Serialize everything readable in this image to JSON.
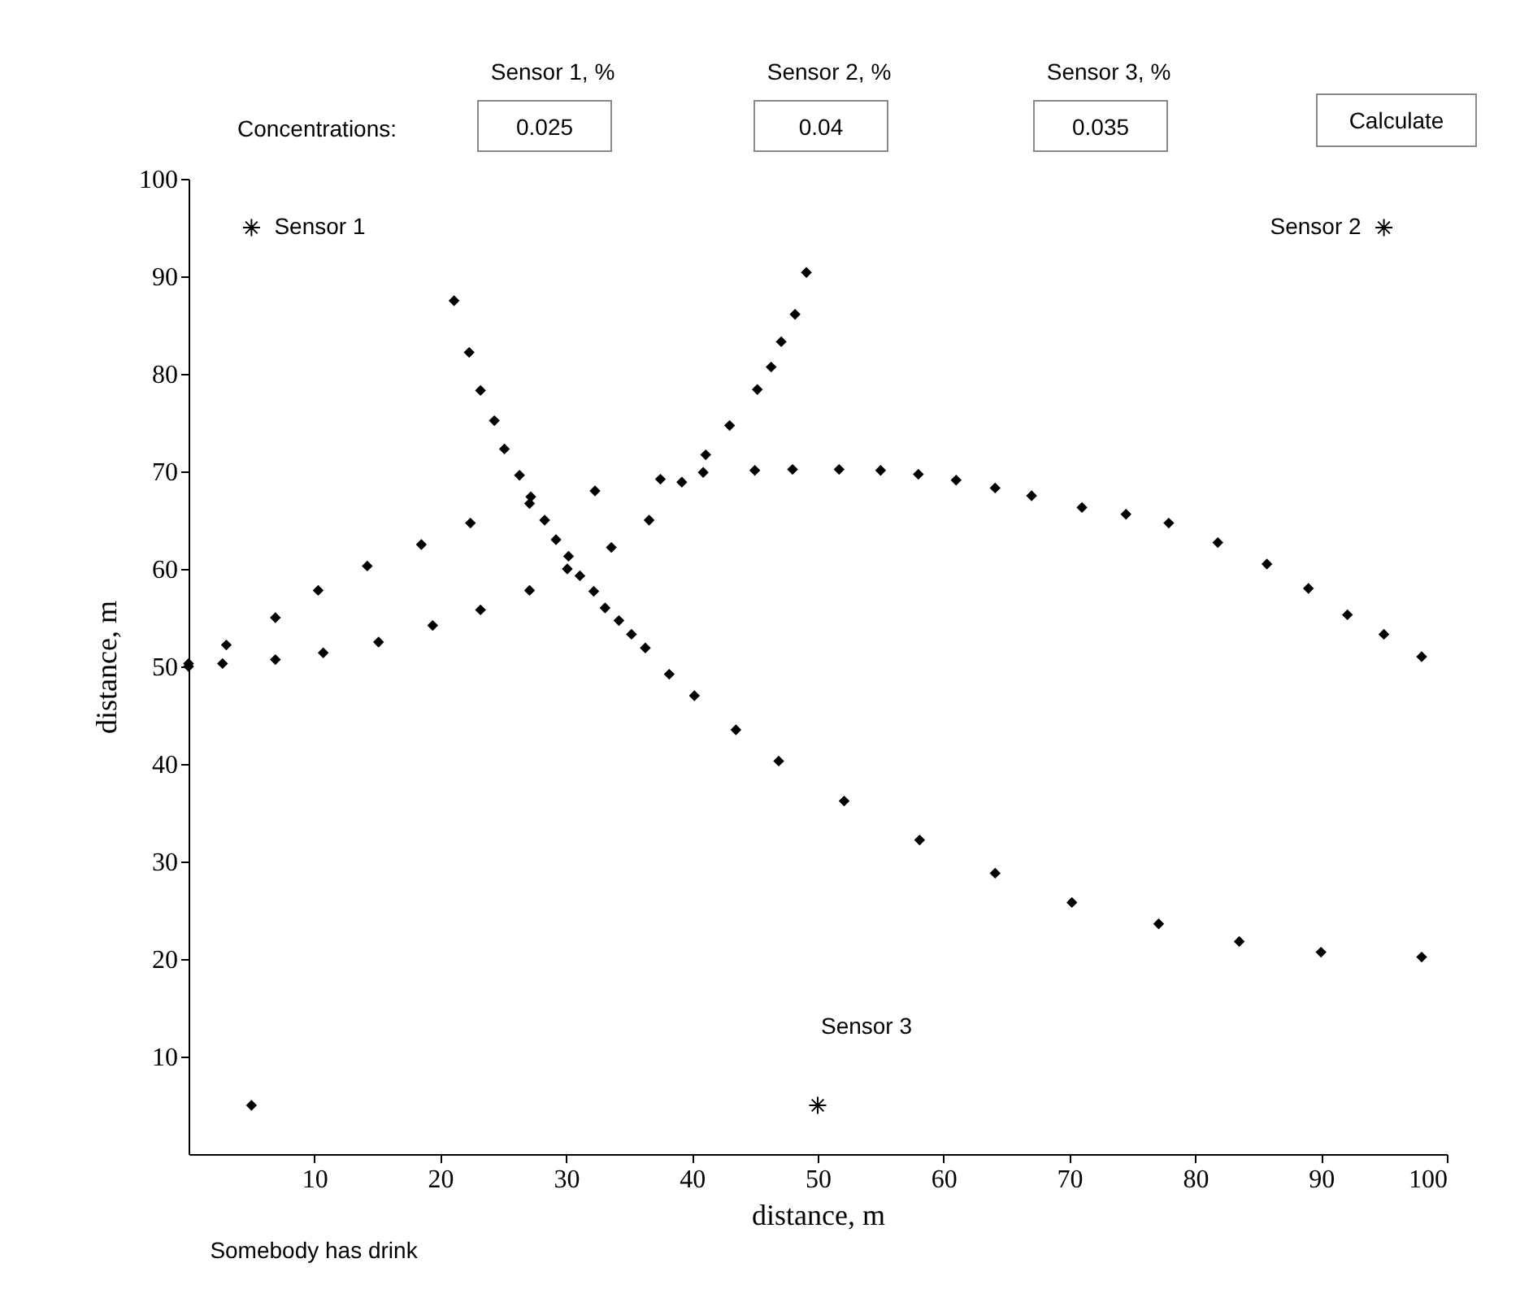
{
  "chart_data": {
    "type": "scatter",
    "xlabel": "distance, m",
    "ylabel": "distance, m",
    "xlim": [
      0,
      100
    ],
    "ylim": [
      0,
      100
    ],
    "xticks": [
      10,
      20,
      30,
      40,
      50,
      60,
      70,
      80,
      90,
      100
    ],
    "yticks": [
      10,
      20,
      30,
      40,
      50,
      60,
      70,
      80,
      90,
      100
    ],
    "grid": false,
    "annotations": [
      "Sensor 1, %",
      "Sensor 2, %",
      "Sensor 3, %",
      "Concentrations:",
      "0.025",
      "0.04",
      "0.035",
      "Calculate",
      "Somebody has drink"
    ],
    "series": [
      {
        "color": "#000000",
        "marker": "diamond",
        "x": [
          0,
          3,
          6.9,
          10.3,
          14.2,
          18.5,
          22.4,
          27.1,
          32.3,
          37.5,
          40.9,
          45,
          48,
          51.7,
          55,
          58,
          61,
          64.1,
          67,
          71,
          74.5,
          77.9,
          81.8,
          85.7,
          89,
          92.1,
          95,
          98
        ],
        "values": [
          50,
          52.2,
          55,
          57.8,
          60.3,
          62.5,
          64.7,
          66.7,
          68,
          69.2,
          69.9,
          70.1,
          70.2,
          70.2,
          70.1,
          69.7,
          69.1,
          68.3,
          67.5,
          66.3,
          65.6,
          64.7,
          62.7,
          60.5,
          58,
          55.3,
          53.3,
          51
        ]
      },
      {
        "color": "#000000",
        "marker": "diamond",
        "x": [
          0,
          2.7,
          6.9,
          10.7,
          15.1,
          19.4,
          23.2,
          27.1,
          30.1,
          33.6,
          36.6,
          39.2,
          41.1,
          43,
          45.2,
          46.3,
          47.1,
          48.2,
          49.1
        ],
        "values": [
          50.3,
          50.3,
          50.7,
          51.4,
          52.5,
          54.2,
          55.8,
          57.8,
          60,
          62.2,
          65,
          68.9,
          71.7,
          74.7,
          78.4,
          80.7,
          83.3,
          86.1,
          90.4
        ]
      },
      {
        "color": "#000000",
        "marker": "diamond",
        "x": [
          21.1,
          22.3,
          23.2,
          24.3,
          25.1,
          26.3,
          27.2,
          28.3,
          29.2,
          30.2,
          31.1,
          32.2,
          33.1,
          34.2,
          35.2,
          36.3,
          38.2,
          40.2,
          43.5,
          46.9,
          52.1,
          58.1,
          64.1,
          70.2,
          77.1,
          83.5,
          90,
          98
        ],
        "values": [
          87.5,
          82.2,
          78.3,
          75.2,
          72.3,
          69.6,
          67.4,
          65,
          63,
          61.3,
          59.3,
          57.7,
          56,
          54.7,
          53.3,
          51.9,
          49.2,
          47,
          43.5,
          40.3,
          36.2,
          32.2,
          28.8,
          25.8,
          23.6,
          21.8,
          20.7,
          20.2
        ]
      },
      {
        "name": "Sensor 1",
        "color": "#000000",
        "marker": "cross",
        "x": [
          5
        ],
        "values": [
          95
        ]
      },
      {
        "name": "Sensor 2",
        "color": "#000000",
        "marker": "cross",
        "x": [
          95
        ],
        "values": [
          95
        ]
      },
      {
        "name": "Sensor 3",
        "color": "#000000",
        "marker": "cross",
        "x": [
          50
        ],
        "values": [
          5
        ]
      },
      {
        "color": "#000000",
        "marker": "diamond",
        "x": [
          5
        ],
        "values": [
          5
        ]
      }
    ]
  }
}
